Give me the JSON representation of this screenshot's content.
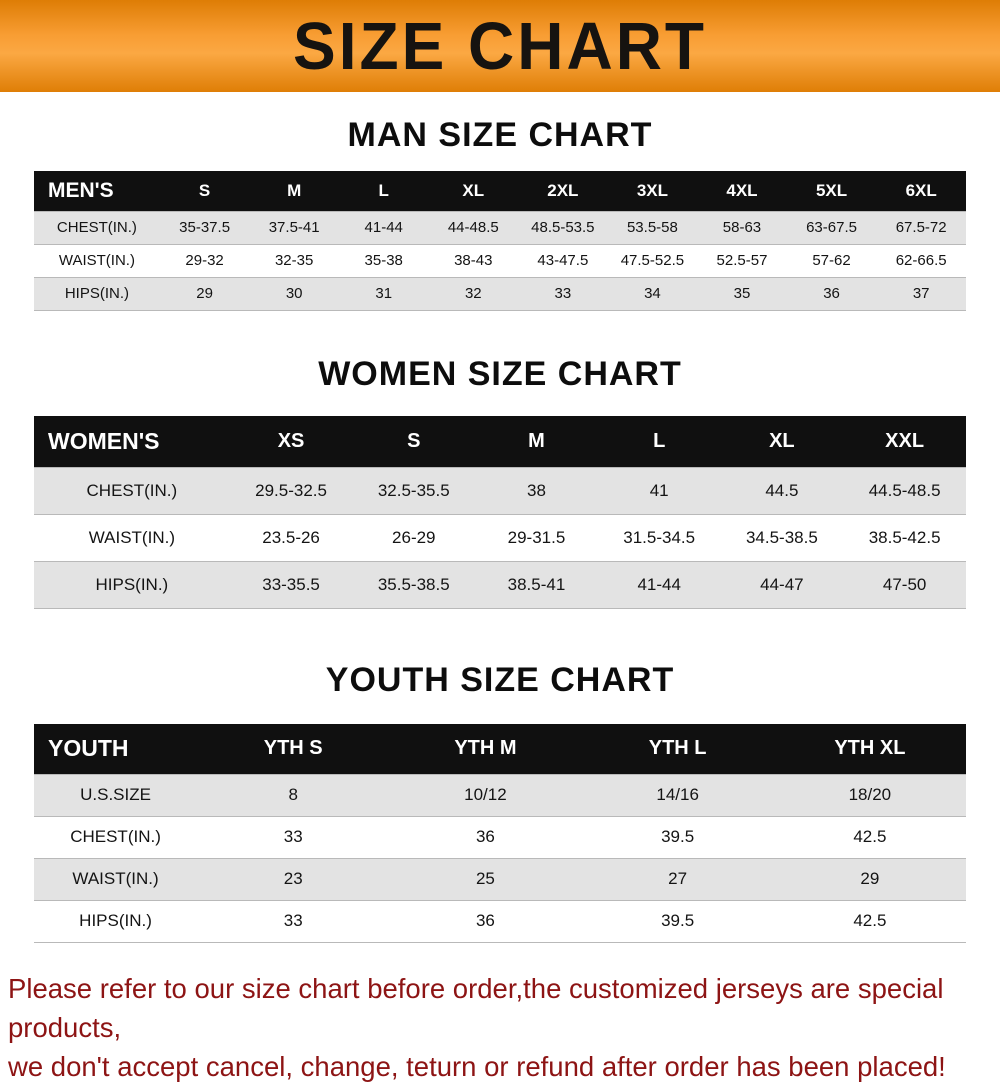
{
  "banner": {
    "title": "SIZE CHART",
    "bg_color": "#f89d33"
  },
  "sections": [
    {
      "heading": "MAN SIZE CHART",
      "table": {
        "header_label": "MEN'S",
        "columns": [
          "S",
          "M",
          "L",
          "XL",
          "2XL",
          "3XL",
          "4XL",
          "5XL",
          "6XL"
        ],
        "rows": [
          {
            "label": "CHEST(IN.)",
            "values": [
              "35-37.5",
              "37.5-41",
              "41-44",
              "44-48.5",
              "48.5-53.5",
              "53.5-58",
              "58-63",
              "63-67.5",
              "67.5-72"
            ]
          },
          {
            "label": "WAIST(IN.)",
            "values": [
              "29-32",
              "32-35",
              "35-38",
              "38-43",
              "43-47.5",
              "47.5-52.5",
              "52.5-57",
              "57-62",
              "62-66.5"
            ]
          },
          {
            "label": "HIPS(IN.)",
            "values": [
              "29",
              "30",
              "31",
              "32",
              "33",
              "34",
              "35",
              "36",
              "37"
            ]
          }
        ]
      }
    },
    {
      "heading": "WOMEN SIZE CHART",
      "table": {
        "header_label": "WOMEN'S",
        "columns": [
          "XS",
          "S",
          "M",
          "L",
          "XL",
          "XXL"
        ],
        "rows": [
          {
            "label": "CHEST(IN.)",
            "values": [
              "29.5-32.5",
              "32.5-35.5",
              "38",
              "41",
              "44.5",
              "44.5-48.5"
            ]
          },
          {
            "label": "WAIST(IN.)",
            "values": [
              "23.5-26",
              "26-29",
              "29-31.5",
              "31.5-34.5",
              "34.5-38.5",
              "38.5-42.5"
            ]
          },
          {
            "label": "HIPS(IN.)",
            "values": [
              "33-35.5",
              "35.5-38.5",
              "38.5-41",
              "41-44",
              "44-47",
              "47-50"
            ]
          }
        ]
      }
    },
    {
      "heading": "YOUTH SIZE CHART",
      "table": {
        "header_label": "YOUTH",
        "columns": [
          "YTH S",
          "YTH M",
          "YTH L",
          "YTH XL"
        ],
        "rows": [
          {
            "label": "U.S.SIZE",
            "values": [
              "8",
              "10/12",
              "14/16",
              "18/20"
            ]
          },
          {
            "label": "CHEST(IN.)",
            "values": [
              "33",
              "36",
              "39.5",
              "42.5"
            ]
          },
          {
            "label": "WAIST(IN.)",
            "values": [
              "23",
              "25",
              "27",
              "29"
            ]
          },
          {
            "label": "HIPS(IN.)",
            "values": [
              "33",
              "36",
              "39.5",
              "42.5"
            ]
          }
        ]
      }
    }
  ],
  "footer": {
    "line1": "Please refer to our size chart before order,the customized jerseys are special products,",
    "line2": "we don't accept cancel, change, teturn or refund after order has been placed!",
    "text_color": "#8d1414"
  }
}
